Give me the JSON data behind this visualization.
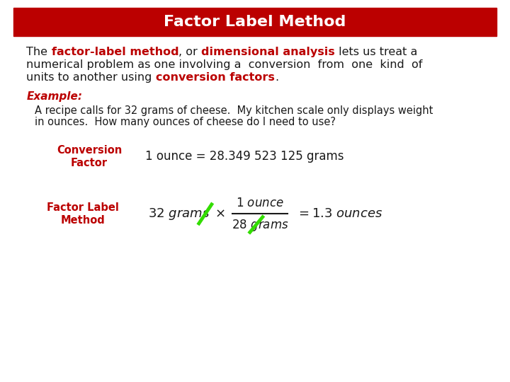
{
  "title": "Factor Label Method",
  "title_bg_color": "#bb0000",
  "title_text_color": "#ffffff",
  "bg_color": "#ffffff",
  "dark_red": "#bb0000",
  "black": "#1a1a1a",
  "green": "#33dd00",
  "example_label": "Example:",
  "example_text1": "A recipe calls for 32 grams of cheese.  My kitchen scale only displays weight",
  "example_text2": "in ounces.  How many ounces of cheese do I need to use?",
  "conv_label": "Conversion\nFactor",
  "conv_formula": "1 ounce = 28.349 523 125 grams",
  "factor_label": "Factor Label\nMethod"
}
